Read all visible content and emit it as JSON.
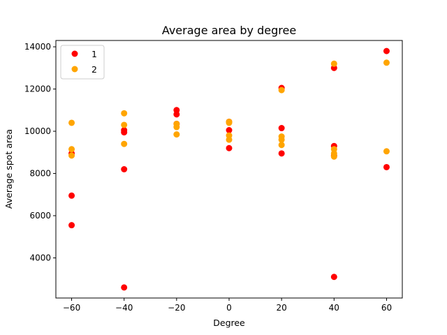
{
  "chart_data": {
    "type": "scatter",
    "title": "Average area by degree",
    "xlabel": "Degree",
    "ylabel": "Average spot area",
    "xlim": [
      -66,
      66
    ],
    "ylim": [
      2100,
      14300
    ],
    "xticks": [
      -60,
      -40,
      -20,
      0,
      20,
      40,
      60
    ],
    "yticks": [
      4000,
      6000,
      8000,
      10000,
      12000,
      14000
    ],
    "legend_position": "top-left",
    "series": [
      {
        "name": "1",
        "color": "#ff0000",
        "points": [
          [
            -60,
            8950
          ],
          [
            -60,
            6950
          ],
          [
            -60,
            5550
          ],
          [
            -40,
            10050
          ],
          [
            -40,
            9950
          ],
          [
            -40,
            8200
          ],
          [
            -40,
            2600
          ],
          [
            -20,
            11000
          ],
          [
            -20,
            10800
          ],
          [
            -20,
            10350
          ],
          [
            0,
            10450
          ],
          [
            0,
            10050
          ],
          [
            0,
            9200
          ],
          [
            20,
            12050
          ],
          [
            20,
            10150
          ],
          [
            20,
            8950
          ],
          [
            40,
            13000
          ],
          [
            40,
            9300
          ],
          [
            40,
            8850
          ],
          [
            40,
            3100
          ],
          [
            60,
            13800
          ],
          [
            60,
            8300
          ]
        ]
      },
      {
        "name": "2",
        "color": "#ffa500",
        "points": [
          [
            -60,
            10400
          ],
          [
            -60,
            9150
          ],
          [
            -60,
            8850
          ],
          [
            -40,
            10850
          ],
          [
            -40,
            10300
          ],
          [
            -40,
            9400
          ],
          [
            -20,
            10350
          ],
          [
            -20,
            10200
          ],
          [
            -20,
            9850
          ],
          [
            0,
            10450
          ],
          [
            0,
            10400
          ],
          [
            0,
            9800
          ],
          [
            0,
            9600
          ],
          [
            20,
            11950
          ],
          [
            20,
            9750
          ],
          [
            20,
            9600
          ],
          [
            20,
            9350
          ],
          [
            40,
            13200
          ],
          [
            40,
            9150
          ],
          [
            40,
            8950
          ],
          [
            40,
            8800
          ],
          [
            60,
            13250
          ],
          [
            60,
            9050
          ]
        ]
      }
    ]
  }
}
